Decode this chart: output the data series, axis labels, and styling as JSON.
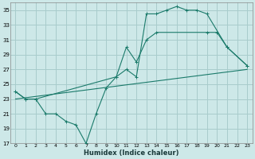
{
  "xlabel": "Humidex (Indice chaleur)",
  "bg_color": "#cde8e8",
  "grid_color": "#a8cccc",
  "line_color": "#1a7a6a",
  "xlim": [
    -0.5,
    23.5
  ],
  "ylim": [
    17,
    36
  ],
  "xticks": [
    0,
    1,
    2,
    3,
    4,
    5,
    6,
    7,
    8,
    9,
    10,
    11,
    12,
    13,
    14,
    15,
    16,
    17,
    18,
    19,
    20,
    21,
    22,
    23
  ],
  "yticks": [
    17,
    19,
    21,
    23,
    25,
    27,
    29,
    31,
    33,
    35
  ],
  "s1x": [
    0,
    1,
    2,
    3,
    4,
    5,
    6,
    7,
    8,
    9,
    10,
    11,
    12,
    13,
    14,
    15,
    16,
    17,
    18,
    19,
    21,
    23
  ],
  "s1y": [
    24,
    23,
    23,
    21,
    21,
    20,
    19.5,
    17,
    21,
    24.5,
    26,
    27,
    26,
    34.5,
    34.5,
    35,
    35.5,
    35,
    35,
    34.5,
    30,
    27.5
  ],
  "s2x": [
    0,
    1,
    2,
    10,
    11,
    12,
    13,
    14,
    19,
    20,
    21,
    23
  ],
  "s2y": [
    24,
    23,
    23,
    26,
    30,
    28,
    31,
    32,
    32,
    32,
    30,
    27.5
  ],
  "s3x": [
    0,
    23
  ],
  "s3y": [
    23,
    27
  ]
}
